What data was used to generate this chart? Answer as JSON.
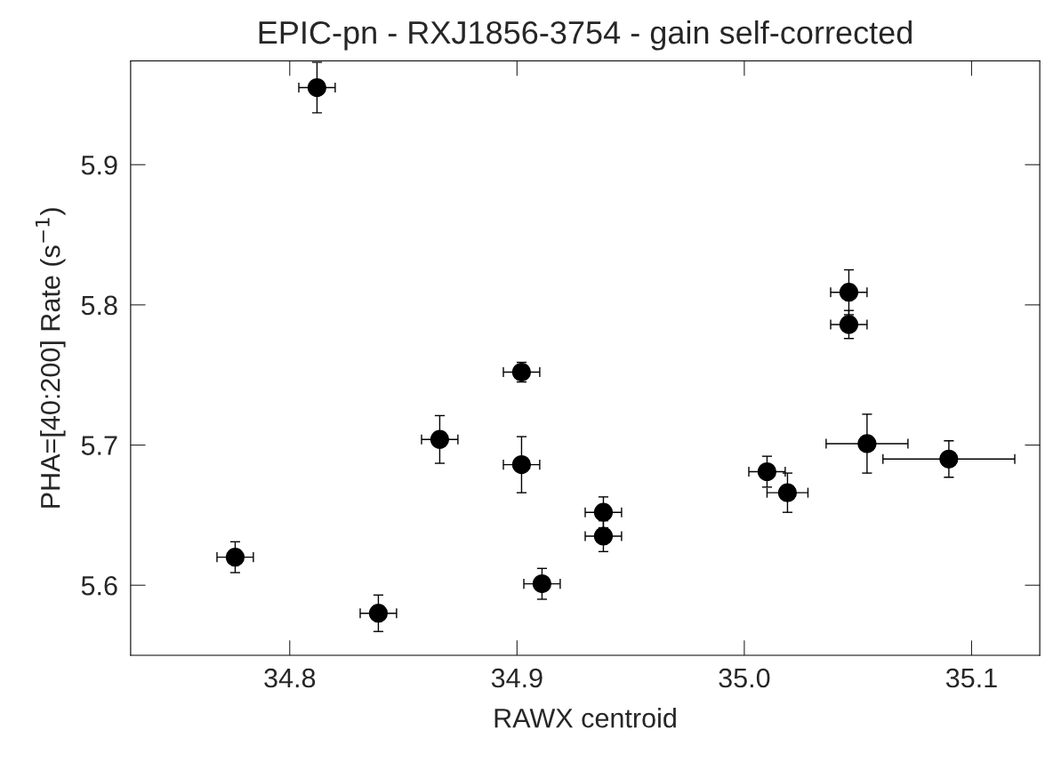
{
  "chart_data": {
    "type": "scatter",
    "title": "EPIC-pn - RXJ1856-3754 - gain self-corrected",
    "xlabel": "RAWX centroid",
    "ylabel": "PHA=[40:200] Rate (s$^{−1}$)",
    "x": [
      34.812,
      34.776,
      34.839,
      34.866,
      34.902,
      34.902,
      34.911,
      34.938,
      34.938,
      35.01,
      35.019,
      35.046,
      35.046,
      35.054,
      35.09
    ],
    "series": [
      {
        "color": "#000000",
        "values": [
          5.955,
          5.62,
          5.58,
          5.704,
          5.752,
          5.686,
          5.601,
          5.652,
          5.635,
          5.681,
          5.666,
          5.809,
          5.786,
          5.701,
          5.69
        ],
        "errors": [
          0.018,
          0.011,
          0.013,
          0.017,
          0.007,
          0.02,
          0.011,
          0.011,
          0.011,
          0.011,
          0.014,
          0.016,
          0.01,
          0.021,
          0.013
        ],
        "xerrors": [
          0.008,
          0.008,
          0.008,
          0.008,
          0.008,
          0.008,
          0.008,
          0.008,
          0.008,
          0.008,
          0.009,
          0.008,
          0.008,
          0.018,
          0.029
        ]
      }
    ],
    "xlim": [
      34.73,
      35.13
    ],
    "ylim": [
      5.55,
      5.974
    ],
    "xticks": [
      34.8,
      34.9,
      {
        "value": 35.0,
        "label": "35.0"
      },
      35.1
    ],
    "yticks": [
      5.6,
      5.7,
      5.8,
      5.9
    ],
    "marker": "circle",
    "grid": false,
    "legend": false
  }
}
